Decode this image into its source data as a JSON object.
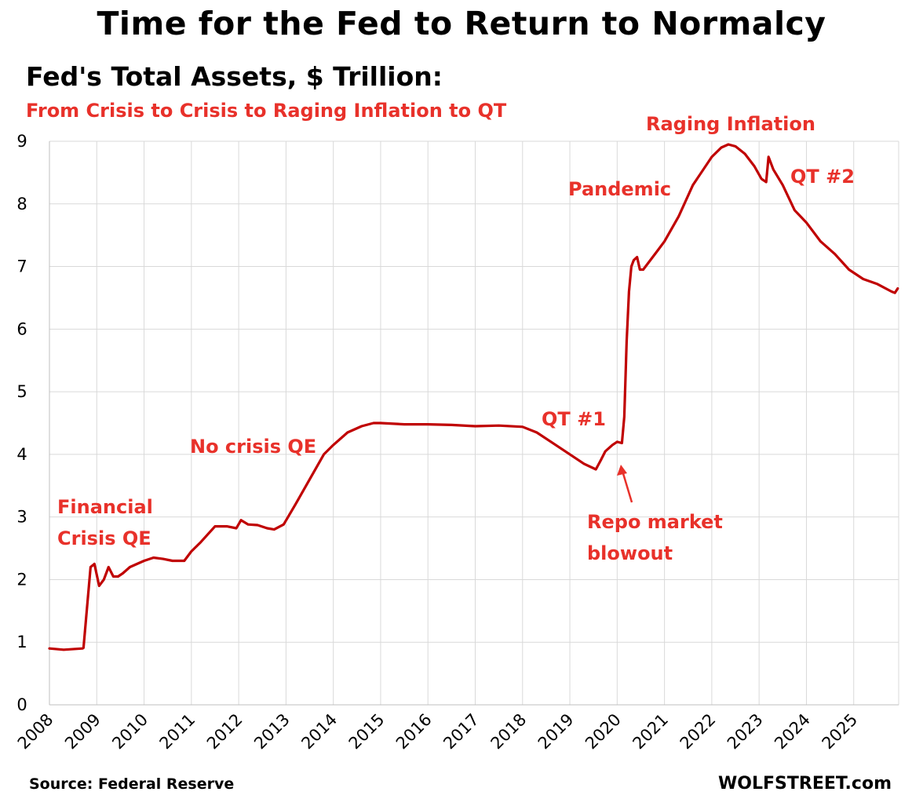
{
  "title": "Time for the Fed to Return to Normalcy",
  "subtitle": "Fed's Total Assets, $ Trillion:",
  "subtitle2": "From Crisis to Crisis to Raging Inflation to QT",
  "source": "Source: Federal Reserve",
  "brand": "WOLFSTREET.com",
  "colors": {
    "line": "#c00000",
    "annotation": "#e8312a",
    "grid": "#d9d9d9"
  },
  "chart_data": {
    "type": "line",
    "title": "Fed's Total Assets, $ Trillion:",
    "xlabel": "",
    "ylabel": "$ Trillion",
    "xlim": [
      2008,
      2025.95
    ],
    "ylim": [
      0,
      9
    ],
    "grid": true,
    "y_ticks": [
      "0",
      "1",
      "2",
      "3",
      "4",
      "5",
      "6",
      "7",
      "8",
      "9"
    ],
    "x_ticks": [
      "2008",
      "2009",
      "2010",
      "2011",
      "2012",
      "2013",
      "2014",
      "2015",
      "2016",
      "2017",
      "2018",
      "2019",
      "2020",
      "2021",
      "2022",
      "2023",
      "2024",
      "2025"
    ],
    "series": [
      {
        "name": "Fed's Total Assets",
        "x": [
          2008.0,
          2008.3,
          2008.7,
          2008.72,
          2008.8,
          2008.87,
          2008.95,
          2009.05,
          2009.15,
          2009.25,
          2009.35,
          2009.45,
          2009.55,
          2009.7,
          2009.85,
          2010.0,
          2010.2,
          2010.4,
          2010.6,
          2010.85,
          2011.0,
          2011.2,
          2011.5,
          2011.75,
          2011.95,
          2012.05,
          2012.2,
          2012.4,
          2012.6,
          2012.75,
          2012.95,
          2013.2,
          2013.5,
          2013.8,
          2014.0,
          2014.3,
          2014.6,
          2014.85,
          2015.0,
          2015.5,
          2016.0,
          2016.5,
          2017.0,
          2017.5,
          2018.0,
          2018.3,
          2018.6,
          2019.0,
          2019.3,
          2019.55,
          2019.65,
          2019.75,
          2019.9,
          2020.0,
          2020.1,
          2020.15,
          2020.2,
          2020.25,
          2020.3,
          2020.35,
          2020.42,
          2020.48,
          2020.55,
          2020.7,
          2020.85,
          2021.0,
          2021.3,
          2021.6,
          2022.0,
          2022.2,
          2022.35,
          2022.5,
          2022.7,
          2022.9,
          2023.05,
          2023.15,
          2023.2,
          2023.3,
          2023.5,
          2023.75,
          2024.0,
          2024.3,
          2024.6,
          2024.9,
          2025.2,
          2025.5,
          2025.8,
          2025.87,
          2025.93
        ],
        "values": [
          0.9,
          0.88,
          0.9,
          0.91,
          1.6,
          2.2,
          2.25,
          1.9,
          2.0,
          2.2,
          2.05,
          2.05,
          2.1,
          2.2,
          2.25,
          2.3,
          2.35,
          2.33,
          2.3,
          2.3,
          2.45,
          2.6,
          2.85,
          2.85,
          2.82,
          2.95,
          2.88,
          2.87,
          2.82,
          2.8,
          2.88,
          3.2,
          3.6,
          4.0,
          4.15,
          4.35,
          4.45,
          4.5,
          4.5,
          4.48,
          4.48,
          4.47,
          4.45,
          4.46,
          4.44,
          4.35,
          4.2,
          4.0,
          3.85,
          3.76,
          3.9,
          4.05,
          4.15,
          4.2,
          4.18,
          4.6,
          5.8,
          6.6,
          7.0,
          7.1,
          7.15,
          6.95,
          6.95,
          7.1,
          7.25,
          7.4,
          7.8,
          8.3,
          8.75,
          8.9,
          8.95,
          8.92,
          8.8,
          8.6,
          8.4,
          8.35,
          8.75,
          8.55,
          8.3,
          7.9,
          7.7,
          7.4,
          7.2,
          6.95,
          6.8,
          6.72,
          6.6,
          6.58,
          6.65
        ]
      }
    ],
    "annotations": [
      {
        "lines": [
          "Financial",
          "Crisis QE"
        ]
      },
      {
        "lines": [
          "No crisis QE"
        ]
      },
      {
        "lines": [
          "QT #1"
        ]
      },
      {
        "lines": [
          "Repo market",
          "blowout"
        ]
      },
      {
        "lines": [
          "Pandemic"
        ]
      },
      {
        "lines": [
          "Raging  Inflation"
        ]
      },
      {
        "lines": [
          "QT #2"
        ]
      }
    ]
  }
}
